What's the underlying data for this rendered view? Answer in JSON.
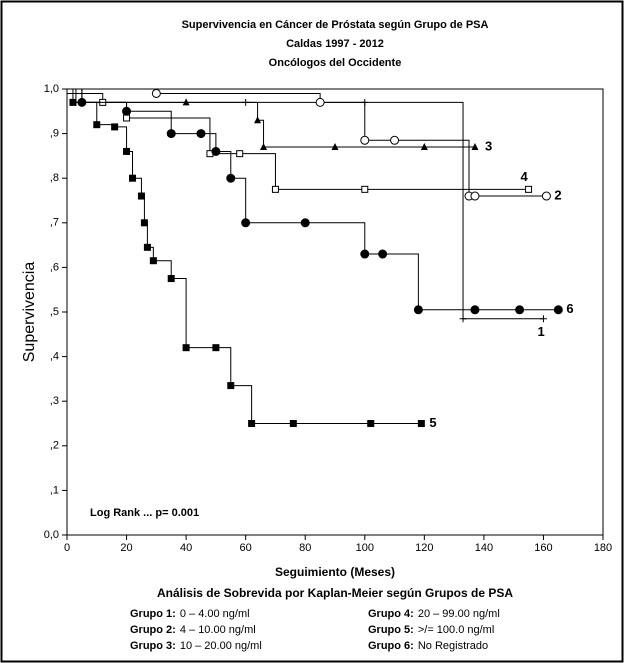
{
  "chart_data": {
    "type": "survival",
    "title": [
      "Supervivencia en Cáncer de Próstata según Grupo de PSA",
      "Caldas  1997 - 2012",
      "Oncólogos del Occidente"
    ],
    "xlabel": "Seguimiento (Meses)",
    "ylabel": "Supervivencia",
    "annotation": "Log Rank ... p= 0.001",
    "legend_title": "Análisis de Sobrevida por Kaplan-Meier según Grupos de PSA",
    "xlim": [
      0,
      180
    ],
    "xticks": [
      0,
      20,
      40,
      60,
      80,
      100,
      120,
      140,
      160,
      180
    ],
    "ylim": [
      0,
      1.0
    ],
    "yticks": [
      {
        "value": 0,
        "label": "0,0"
      },
      {
        "value": 0.1,
        "label": ",1"
      },
      {
        "value": 0.2,
        "label": ",2"
      },
      {
        "value": 0.3,
        "label": ",3"
      },
      {
        "value": 0.4,
        "label": ",4"
      },
      {
        "value": 0.5,
        "label": ",5"
      },
      {
        "value": 0.6,
        "label": ",6"
      },
      {
        "value": 0.7,
        "label": ",7"
      },
      {
        "value": 0.8,
        "label": ",8"
      },
      {
        "value": 0.9,
        "label": ",9"
      },
      {
        "value": 1.0,
        "label": "1,0"
      }
    ],
    "series": [
      {
        "name": "Grupo 1:",
        "range": "0 – 4.00 ng/ml",
        "end_label": "1",
        "marker": "plus",
        "color": "#000000",
        "x": [
          0,
          3,
          60,
          100,
          133,
          160
        ],
        "values": [
          1.0,
          0.97,
          0.97,
          0.97,
          0.485,
          0.485
        ]
      },
      {
        "name": "Grupo 2:",
        "range": "4 – 10.00 ng/ml",
        "end_label": "2",
        "marker": "circle-open",
        "color": "#000000",
        "x": [
          0,
          30,
          85,
          100,
          110,
          135,
          137,
          161
        ],
        "values": [
          1.0,
          0.99,
          0.97,
          0.885,
          0.885,
          0.76,
          0.76,
          0.76
        ]
      },
      {
        "name": "Grupo 3:",
        "range": "10 – 20.00 ng/ml",
        "end_label": "3",
        "marker": "triangle",
        "color": "#000000",
        "x": [
          0,
          5,
          40,
          64,
          66,
          90,
          120,
          137
        ],
        "values": [
          1.0,
          0.97,
          0.97,
          0.93,
          0.87,
          0.87,
          0.87,
          0.87
        ]
      },
      {
        "name": "Grupo 4:",
        "range": "20 – 99.00 ng/ml",
        "end_label": "4",
        "marker": "square-open",
        "color": "#000000",
        "x": [
          0,
          12,
          20,
          48,
          58,
          70,
          100,
          155
        ],
        "values": [
          0.99,
          0.97,
          0.935,
          0.855,
          0.855,
          0.775,
          0.775,
          0.775
        ]
      },
      {
        "name": "Grupo 5:",
        "range": ">/= 100.0 ng/ml",
        "end_label": "5",
        "marker": "square",
        "color": "#000000",
        "x": [
          0,
          2,
          10,
          16,
          20,
          22,
          25,
          26,
          27,
          29,
          35,
          40,
          50,
          55,
          62,
          76,
          102,
          119
        ],
        "values": [
          1.0,
          0.97,
          0.92,
          0.915,
          0.86,
          0.8,
          0.76,
          0.7,
          0.645,
          0.615,
          0.575,
          0.42,
          0.42,
          0.335,
          0.25,
          0.25,
          0.25,
          0.25
        ]
      },
      {
        "name": "Grupo 6:",
        "range": "No Registrado",
        "end_label": "6",
        "marker": "circle",
        "color": "#000000",
        "x": [
          0,
          5,
          20,
          35,
          45,
          50,
          55,
          60,
          80,
          100,
          106,
          118,
          137,
          152,
          165
        ],
        "values": [
          1.0,
          0.97,
          0.95,
          0.9,
          0.9,
          0.86,
          0.8,
          0.7,
          0.7,
          0.63,
          0.63,
          0.505,
          0.505,
          0.505,
          0.505
        ]
      }
    ]
  }
}
